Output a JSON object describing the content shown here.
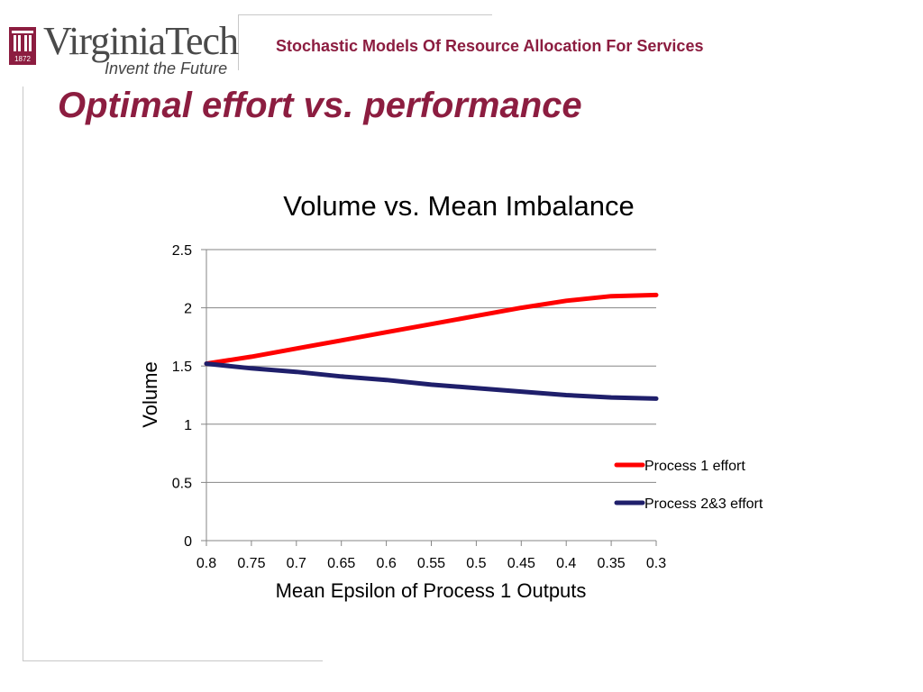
{
  "header": {
    "logo_text": "VirginiaTech",
    "logo_year": "1872",
    "tagline": "Invent the Future",
    "course_title": "Stochastic Models Of Resource Allocation For Services"
  },
  "slide": {
    "title": "Optimal effort vs. performance"
  },
  "colors": {
    "accent": "#8c1d40",
    "series1": "#ff0000",
    "series2": "#1f1f6b"
  },
  "chart_data": {
    "type": "line",
    "title": "Volume vs. Mean Imbalance",
    "xlabel": "Mean Epsilon of Process 1 Outputs",
    "ylabel": "Volume",
    "categories": [
      "0.8",
      "0.75",
      "0.7",
      "0.65",
      "0.6",
      "0.55",
      "0.5",
      "0.45",
      "0.4",
      "0.35",
      "0.3"
    ],
    "yticks": [
      "0",
      "0.5",
      "1",
      "1.5",
      "2",
      "2.5"
    ],
    "ylim": [
      0,
      2.5
    ],
    "legend_position": "right",
    "series": [
      {
        "name": "Process 1 effort",
        "color": "#ff0000",
        "values": [
          1.52,
          1.58,
          1.65,
          1.72,
          1.79,
          1.86,
          1.93,
          2.0,
          2.06,
          2.1,
          2.11
        ]
      },
      {
        "name": "Process 2&3 effort",
        "color": "#1f1f6b",
        "values": [
          1.52,
          1.48,
          1.45,
          1.41,
          1.38,
          1.34,
          1.31,
          1.28,
          1.25,
          1.23,
          1.22
        ]
      }
    ]
  }
}
